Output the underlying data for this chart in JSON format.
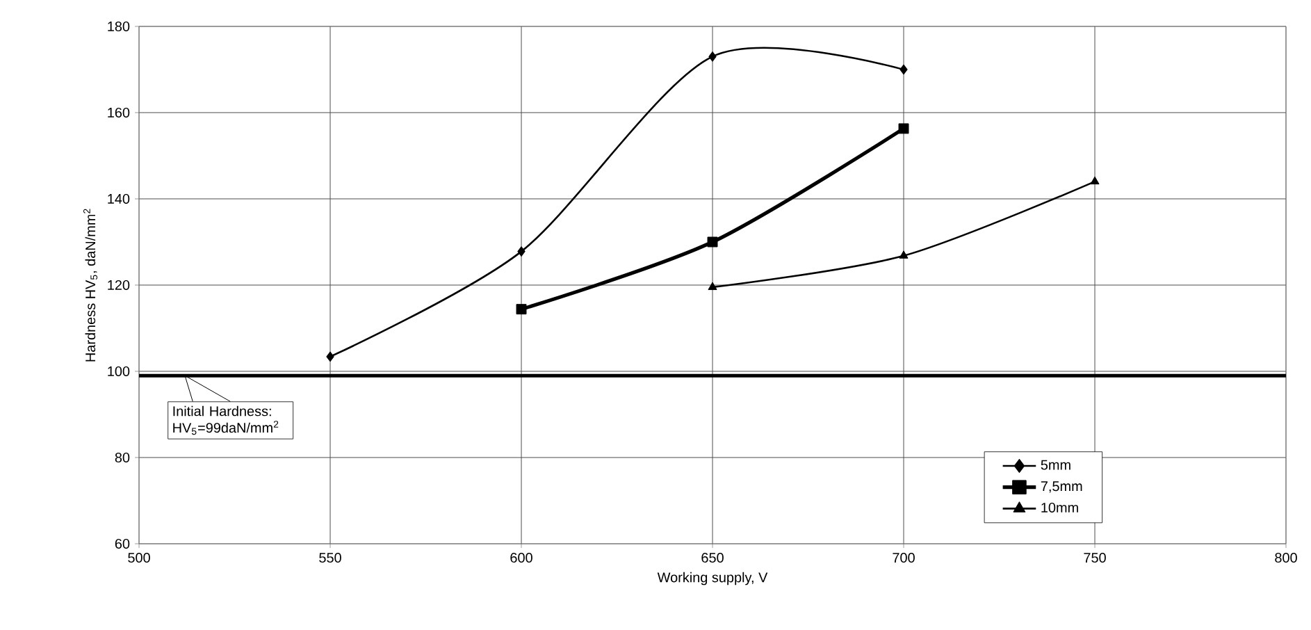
{
  "chart_data": {
    "type": "line",
    "xlabel": "Working supply,  V",
    "ylabel": "Hardness HV$_{5}$, daN/mm$^{2}$",
    "xlim": [
      500,
      800
    ],
    "xticks": [
      500,
      550,
      600,
      650,
      700,
      750,
      800
    ],
    "ylim": [
      60,
      180
    ],
    "yticks": [
      60,
      80,
      100,
      120,
      140,
      160,
      180
    ],
    "grid": true,
    "legend": "bottom right",
    "series": [
      {
        "name": "5mm",
        "color": "#000000",
        "marker": "diamond",
        "x": [
          550,
          600,
          650,
          700
        ],
        "values": [
          103.4,
          127.8,
          173,
          170
        ]
      },
      {
        "name": "7,5mm",
        "color": "#000000",
        "marker": "square",
        "x": [
          600,
          650,
          700
        ],
        "values": [
          114.4,
          130,
          156.3
        ]
      },
      {
        "name": "10mm",
        "color": "#000000",
        "marker": "triangle",
        "x": [
          650,
          700,
          750
        ],
        "values": [
          119.5,
          126.8,
          144
        ]
      }
    ],
    "ref_lines": [
      {
        "axis": "y",
        "value": 99,
        "label": "Initial Hardness: HV$_{5}$=99daN/mm$^{2}$",
        "color": "#000000"
      }
    ]
  }
}
